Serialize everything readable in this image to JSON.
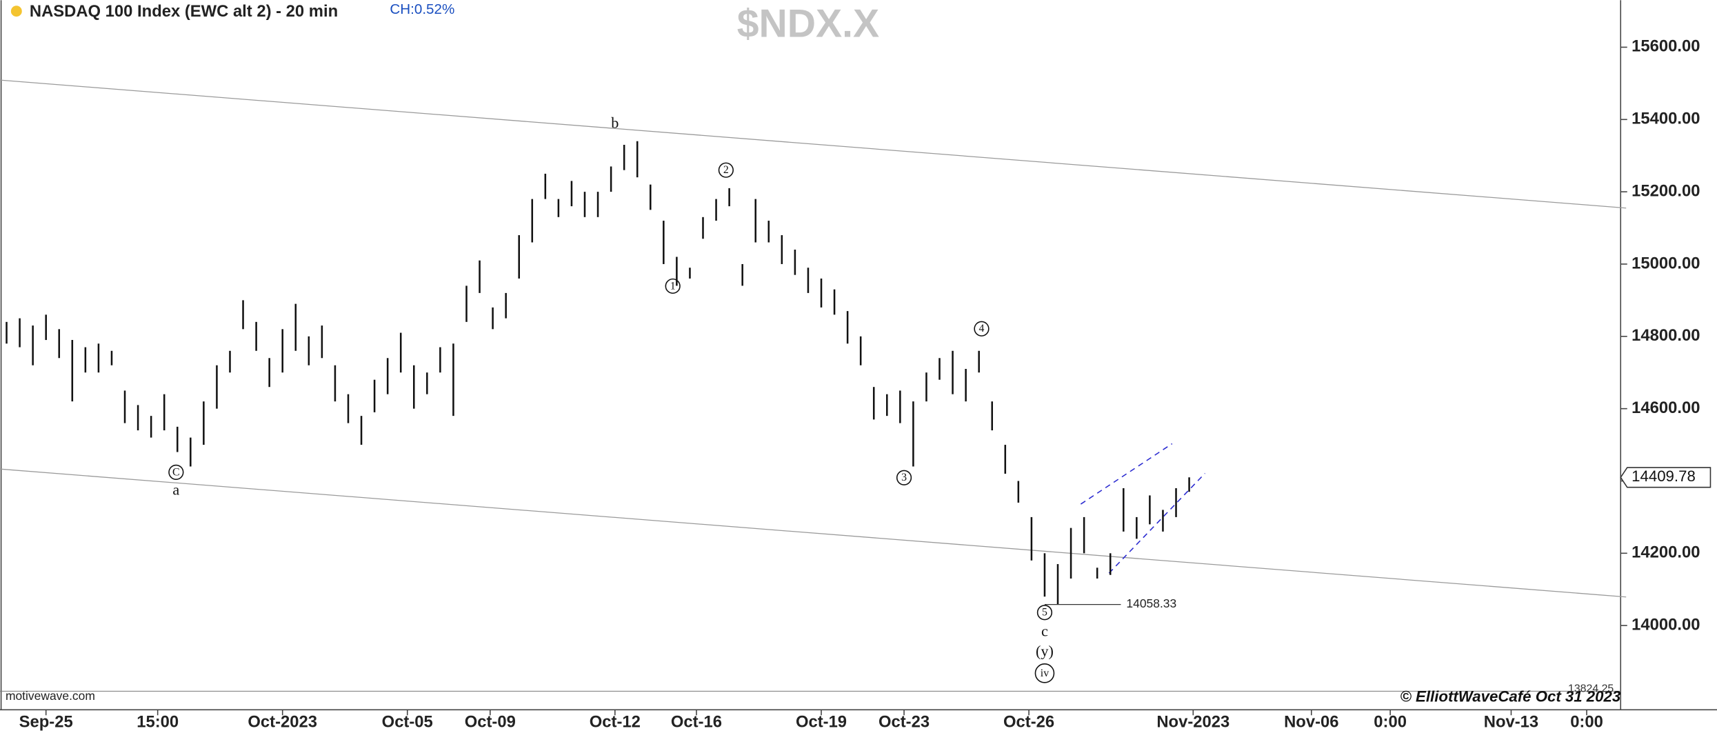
{
  "chart_data": {
    "type": "hl-bars",
    "title": "NASDAQ 100 Index (EWC alt 2) - 20 min",
    "change": "CH:0.52%",
    "watermark": "$NDX.X",
    "source": "motivewave.com",
    "copyright": "© ElliottWaveCafé Oct 31 2023",
    "color": "#111111",
    "xlim": [
      0,
      123
    ],
    "ylim": [
      13776,
      15730
    ],
    "yticks": [
      {
        "value": 14000,
        "label": "14000.00"
      },
      {
        "value": 14200,
        "label": "14200.00"
      },
      {
        "value": 14400,
        "label": "14400.00"
      },
      {
        "value": 14600,
        "label": "14600.00"
      },
      {
        "value": 14800,
        "label": "14800.00"
      },
      {
        "value": 15000,
        "label": "15000.00"
      },
      {
        "value": 15200,
        "label": "15200.00"
      },
      {
        "value": 15400,
        "label": "15400.00"
      },
      {
        "value": 15600,
        "label": "15600.00"
      }
    ],
    "xticks": [
      {
        "value": 3.5,
        "label": "Sep-25"
      },
      {
        "value": 12,
        "label": "15:00"
      },
      {
        "value": 21.5,
        "label": "Oct-2023"
      },
      {
        "value": 31,
        "label": "Oct-05"
      },
      {
        "value": 37.3,
        "label": "Oct-09"
      },
      {
        "value": 46.8,
        "label": "Oct-12"
      },
      {
        "value": 53,
        "label": "Oct-16"
      },
      {
        "value": 62.5,
        "label": "Oct-19"
      },
      {
        "value": 68.8,
        "label": "Oct-23"
      },
      {
        "value": 78.3,
        "label": "Oct-26"
      },
      {
        "value": 90.8,
        "label": "Nov-2023"
      },
      {
        "value": 99.8,
        "label": "Nov-06"
      },
      {
        "value": 105.8,
        "label": "0:00"
      },
      {
        "value": 115,
        "label": "Nov-13"
      },
      {
        "value": 120.75,
        "label": "0:00"
      }
    ],
    "x": [
      0.5,
      1.5,
      2.5,
      3.5,
      4.5,
      5.5,
      6.5,
      7.5,
      8.5,
      9.5,
      10.5,
      11.5,
      12.5,
      13.5,
      14.5,
      15.5,
      16.5,
      17.5,
      18.5,
      19.5,
      20.5,
      21.5,
      22.5,
      23.5,
      24.5,
      25.5,
      26.5,
      27.5,
      28.5,
      29.5,
      30.5,
      31.5,
      32.5,
      33.5,
      34.5,
      35.5,
      36.5,
      37.5,
      38.5,
      39.5,
      40.5,
      41.5,
      42.5,
      43.5,
      44.5,
      45.5,
      46.5,
      47.5,
      48.5,
      49.5,
      50.5,
      51.5,
      52.5,
      53.5,
      54.5,
      55.5,
      56.5,
      57.5,
      58.5,
      59.5,
      60.5,
      61.5,
      62.5,
      63.5,
      64.5,
      65.5,
      66.5,
      67.5,
      68.5,
      69.5,
      70.5,
      71.5,
      72.5,
      73.5,
      74.5,
      75.5,
      76.5,
      77.5,
      78.5,
      79.5,
      80.5,
      81.5,
      82.5,
      83.5,
      84.5,
      85.5,
      86.5,
      87.5,
      88.5,
      89.5,
      90.5
    ],
    "high": [
      14840,
      14850,
      14830,
      14860,
      14820,
      14790,
      14770,
      14780,
      14760,
      14650,
      14610,
      14580,
      14640,
      14550,
      14520,
      14620,
      14720,
      14760,
      14900,
      14840,
      14740,
      14820,
      14890,
      14800,
      14830,
      14720,
      14640,
      14580,
      14680,
      14740,
      14810,
      14720,
      14700,
      14770,
      14780,
      14940,
      15010,
      14880,
      14920,
      15080,
      15180,
      15250,
      15180,
      15230,
      15200,
      15200,
      15270,
      15330,
      15340,
      15220,
      15120,
      15020,
      14990,
      15130,
      15180,
      15210,
      15000,
      15180,
      15120,
      15080,
      15040,
      14990,
      14960,
      14930,
      14870,
      14800,
      14660,
      14640,
      14650,
      14620,
      14700,
      14740,
      14760,
      14710,
      14760,
      14620,
      14500,
      14400,
      14300,
      14200,
      14170,
      14270,
      14300,
      14160,
      14200,
      14380,
      14300,
      14360,
      14320,
      14380,
      14410
    ],
    "low": [
      14780,
      14770,
      14720,
      14790,
      14740,
      14620,
      14700,
      14700,
      14720,
      14560,
      14540,
      14520,
      14540,
      14480,
      14440,
      14500,
      14600,
      14700,
      14820,
      14760,
      14660,
      14700,
      14760,
      14720,
      14740,
      14620,
      14560,
      14500,
      14590,
      14640,
      14700,
      14600,
      14640,
      14700,
      14580,
      14840,
      14920,
      14820,
      14850,
      14960,
      15060,
      15180,
      15130,
      15160,
      15130,
      15130,
      15200,
      15260,
      15240,
      15150,
      15000,
      14940,
      14960,
      15070,
      15120,
      15160,
      14940,
      15060,
      15060,
      15000,
      14970,
      14920,
      14880,
      14860,
      14780,
      14720,
      14570,
      14580,
      14560,
      14440,
      14620,
      14680,
      14640,
      14620,
      14700,
      14540,
      14420,
      14340,
      14180,
      14080,
      14058,
      14130,
      14200,
      14130,
      14140,
      14260,
      14240,
      14280,
      14260,
      14300,
      14370
    ],
    "lines": [
      {
        "x": [
          0,
          123.75
        ],
        "y": [
          15509,
          15155
        ],
        "color": "#9a9a9a",
        "dashed": false
      },
      {
        "x": [
          0,
          123.75
        ],
        "y": [
          14433,
          14079
        ],
        "color": "#9a9a9a",
        "dashed": false
      },
      {
        "x": [
          82.25,
          89.2
        ],
        "y": [
          14336,
          14503
        ],
        "color": "#2a2ad0",
        "dashed": true
      },
      {
        "x": [
          84.4,
          91.7
        ],
        "y": [
          14145,
          14421
        ],
        "color": "#2a2ad0",
        "dashed": true
      }
    ],
    "annotations": [
      {
        "text": "b",
        "x": 46.8,
        "y": 15388,
        "circled": false
      },
      {
        "text": "1",
        "x": 51.2,
        "y": 14939,
        "circled": true
      },
      {
        "text": "2",
        "x": 55.25,
        "y": 15260,
        "circled": true
      },
      {
        "text": "3",
        "x": 68.8,
        "y": 14409,
        "circled": true
      },
      {
        "text": "4",
        "x": 74.7,
        "y": 14821,
        "circled": true
      },
      {
        "text": "5",
        "x": 79.5,
        "y": 14036,
        "circled": true
      },
      {
        "text": "c",
        "x": 79.5,
        "y": 13982,
        "circled": false
      },
      {
        "text": "(y)",
        "x": 79.5,
        "y": 13927,
        "circled": false
      },
      {
        "text": "iv",
        "x": 79.5,
        "y": 13868,
        "circled": true
      },
      {
        "text": "C",
        "x": 13.4,
        "y": 14424,
        "circled": true
      },
      {
        "text": "a",
        "x": 13.4,
        "y": 14373,
        "circled": false
      }
    ],
    "low_marker": {
      "value": 14058.33,
      "x": [
        79.5,
        85.3
      ]
    },
    "last_price": 14409.78,
    "bottom_price": 13824.25
  }
}
